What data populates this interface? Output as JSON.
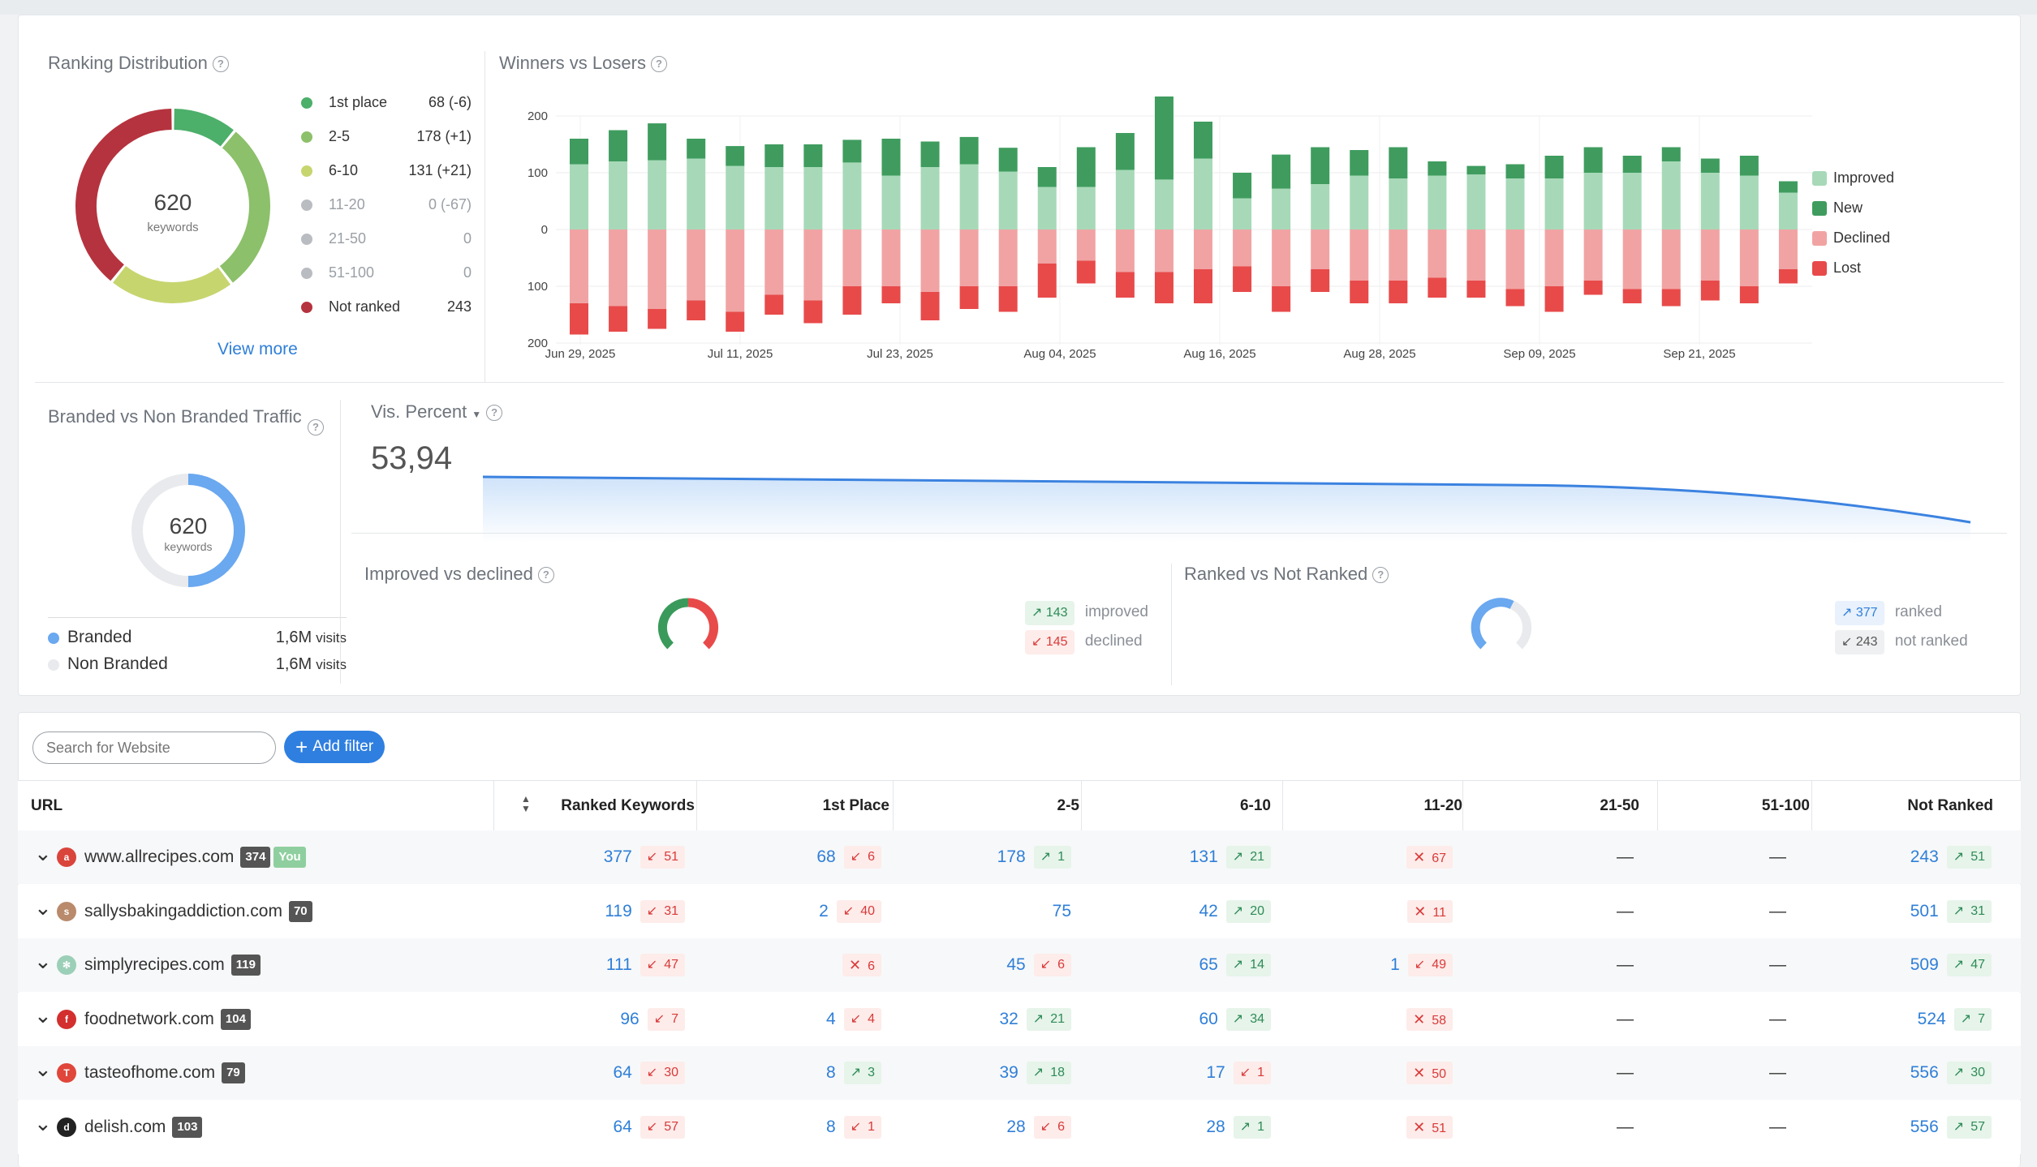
{
  "ranking_distribution": {
    "title": "Ranking Distribution",
    "total": "620",
    "total_label": "keywords",
    "view_more": "View more",
    "items": [
      {
        "label": "1st place",
        "value": "68 (-6)",
        "color": "#4caf6a",
        "muted": false
      },
      {
        "label": "2-5",
        "value": "178 (+1)",
        "color": "#8cc06a",
        "muted": false
      },
      {
        "label": "6-10",
        "value": "131 (+21)",
        "color": "#c7d56f",
        "muted": false
      },
      {
        "label": "11-20",
        "value": "0 (-67)",
        "color": "#b9bcc0",
        "muted": true
      },
      {
        "label": "21-50",
        "value": "0",
        "color": "#b9bcc0",
        "muted": true
      },
      {
        "label": "51-100",
        "value": "0",
        "color": "#b9bcc0",
        "muted": true
      },
      {
        "label": "Not ranked",
        "value": "243",
        "color": "#b5333e",
        "muted": false
      }
    ]
  },
  "winners_losers": {
    "title": "Winners vs Losers",
    "legend": [
      {
        "label": "Improved",
        "color": "#a7d9b8"
      },
      {
        "label": "New",
        "color": "#3f9c5e"
      },
      {
        "label": "Declined",
        "color": "#f1a3a3"
      },
      {
        "label": "Lost",
        "color": "#e84a4a"
      }
    ],
    "y_ticks": [
      "200",
      "100",
      "0",
      "100",
      "200"
    ],
    "x_ticks": [
      "Jun 29, 2025",
      "Jul 11, 2025",
      "Jul 23, 2025",
      "Aug 04, 2025",
      "Aug 16, 2025",
      "Aug 28, 2025",
      "Sep 09, 2025",
      "Sep 21, 2025"
    ]
  },
  "chart_data": {
    "type": "bar",
    "title": "Winners vs Losers",
    "ylim": [
      -200,
      200
    ],
    "x_ticks": [
      "Jun 29, 2025",
      "Jul 11, 2025",
      "Jul 23, 2025",
      "Aug 04, 2025",
      "Aug 16, 2025",
      "Aug 28, 2025",
      "Sep 09, 2025",
      "Sep 21, 2025"
    ],
    "series": [
      {
        "name": "Improved",
        "values": [
          115,
          120,
          122,
          125,
          112,
          110,
          110,
          118,
          95,
          110,
          115,
          102,
          75,
          75,
          105,
          88,
          125,
          55,
          72,
          80,
          95,
          90,
          95,
          97,
          90,
          90,
          100,
          100,
          120,
          100,
          95,
          65
        ]
      },
      {
        "name": "New",
        "values": [
          45,
          55,
          65,
          35,
          35,
          40,
          40,
          40,
          65,
          45,
          48,
          42,
          35,
          70,
          65,
          160,
          65,
          45,
          60,
          65,
          45,
          55,
          25,
          15,
          25,
          40,
          45,
          30,
          25,
          25,
          35,
          20
        ]
      },
      {
        "name": "Declined",
        "values": [
          -130,
          -135,
          -140,
          -125,
          -145,
          -115,
          -125,
          -100,
          -100,
          -110,
          -100,
          -100,
          -60,
          -55,
          -75,
          -75,
          -70,
          -65,
          -100,
          -70,
          -90,
          -90,
          -85,
          -90,
          -105,
          -100,
          -90,
          -105,
          -105,
          -90,
          -100,
          -70
        ]
      },
      {
        "name": "Lost",
        "values": [
          -55,
          -45,
          -35,
          -35,
          -35,
          -35,
          -40,
          -50,
          -30,
          -50,
          -40,
          -45,
          -60,
          -40,
          -45,
          -55,
          -60,
          -45,
          -45,
          -40,
          -40,
          -40,
          -35,
          -30,
          -30,
          -45,
          -25,
          -25,
          -30,
          -35,
          -30,
          -25
        ]
      }
    ]
  },
  "branded": {
    "title": "Branded vs Non Branded Traffic",
    "total": "620",
    "total_label": "keywords",
    "branded_fraction": 0.5,
    "legend": [
      {
        "label": "Branded",
        "value": "1,6M",
        "unit": "visits",
        "color": "#6aa8f0"
      },
      {
        "label": "Non Branded",
        "value": "1,6M",
        "unit": "visits",
        "color": "#e8eaed"
      }
    ]
  },
  "visibility": {
    "label": "Vis. Percent",
    "value": "53,94"
  },
  "improved_declined": {
    "title": "Improved vs declined",
    "improved_value": "143",
    "improved_label": "improved",
    "declined_value": "145",
    "declined_label": "declined"
  },
  "ranked_not": {
    "title": "Ranked vs Not Ranked",
    "ranked_value": "377",
    "ranked_label": "ranked",
    "not_value": "243",
    "not_label": "not ranked"
  },
  "filters": {
    "search_placeholder": "Search for Website",
    "add_filter": "Add filter"
  },
  "table": {
    "headers": [
      "URL",
      "Ranked Keywords",
      "1st Place",
      "2-5",
      "6-10",
      "11-20",
      "21-50",
      "51-100",
      "Not Ranked"
    ],
    "rows": [
      {
        "url": "www.allrecipes.com",
        "badge": "374",
        "you": "You",
        "fav": "a",
        "fav_color": "#d9453b",
        "ranked": [
          "377",
          "51",
          "down"
        ],
        "first": [
          "68",
          "6",
          "down"
        ],
        "c25": [
          "178",
          "1",
          "up"
        ],
        "c610": [
          "131",
          "21",
          "up"
        ],
        "c1120": [
          "",
          "67",
          "x"
        ],
        "c2150": "—",
        "c51100": "—",
        "notr": [
          "243",
          "51",
          "up"
        ]
      },
      {
        "url": "sallysbakingaddiction.com",
        "badge": "70",
        "you": "",
        "fav": "s",
        "fav_color": "#b98a6b",
        "ranked": [
          "119",
          "31",
          "down"
        ],
        "first": [
          "2",
          "40",
          "down"
        ],
        "c25": [
          "75",
          "",
          ""
        ],
        "c610": [
          "42",
          "20",
          "up"
        ],
        "c1120": [
          "",
          "11",
          "x"
        ],
        "c2150": "—",
        "c51100": "—",
        "notr": [
          "501",
          "31",
          "up"
        ]
      },
      {
        "url": "simplyrecipes.com",
        "badge": "119",
        "you": "",
        "fav": "✻",
        "fav_color": "#9ccfb8",
        "ranked": [
          "111",
          "47",
          "down"
        ],
        "first": [
          "",
          "6",
          "x"
        ],
        "c25": [
          "45",
          "6",
          "down"
        ],
        "c610": [
          "65",
          "14",
          "up"
        ],
        "c1120": [
          "1",
          "49",
          "down"
        ],
        "c2150": "—",
        "c51100": "—",
        "notr": [
          "509",
          "47",
          "up"
        ]
      },
      {
        "url": "foodnetwork.com",
        "badge": "104",
        "you": "",
        "fav": "f",
        "fav_color": "#d32f2f",
        "ranked": [
          "96",
          "7",
          "down"
        ],
        "first": [
          "4",
          "4",
          "down"
        ],
        "c25": [
          "32",
          "21",
          "up"
        ],
        "c610": [
          "60",
          "34",
          "up"
        ],
        "c1120": [
          "",
          "58",
          "x"
        ],
        "c2150": "—",
        "c51100": "—",
        "notr": [
          "524",
          "7",
          "up"
        ]
      },
      {
        "url": "tasteofhome.com",
        "badge": "79",
        "you": "",
        "fav": "T",
        "fav_color": "#e0463a",
        "ranked": [
          "64",
          "30",
          "down"
        ],
        "first": [
          "8",
          "3",
          "up"
        ],
        "c25": [
          "39",
          "18",
          "up"
        ],
        "c610": [
          "17",
          "1",
          "down"
        ],
        "c1120": [
          "",
          "50",
          "x"
        ],
        "c2150": "—",
        "c51100": "—",
        "notr": [
          "556",
          "30",
          "up"
        ]
      },
      {
        "url": "delish.com",
        "badge": "103",
        "you": "",
        "fav": "d",
        "fav_color": "#222222",
        "ranked": [
          "64",
          "57",
          "down"
        ],
        "first": [
          "8",
          "1",
          "down"
        ],
        "c25": [
          "28",
          "6",
          "down"
        ],
        "c610": [
          "28",
          "1",
          "up"
        ],
        "c1120": [
          "",
          "51",
          "x"
        ],
        "c2150": "—",
        "c51100": "—",
        "notr": [
          "556",
          "57",
          "up"
        ]
      }
    ]
  }
}
